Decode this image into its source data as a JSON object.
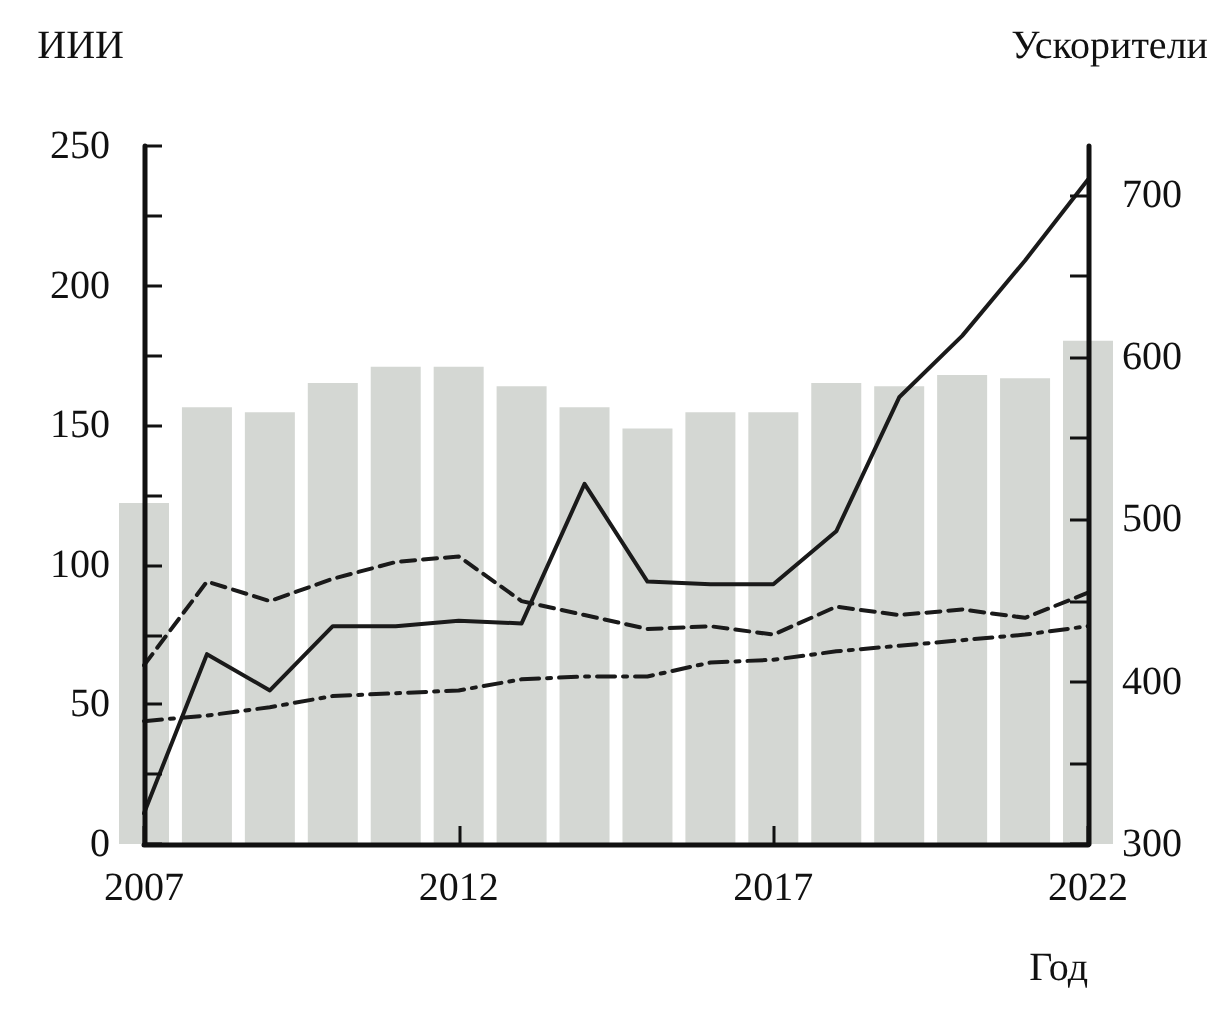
{
  "chart_data": {
    "type": "line",
    "xlabel": "Год",
    "ylabel": "ИИИ",
    "y2label": "Ускорители",
    "x": [
      2007,
      2008,
      2009,
      2010,
      2011,
      2012,
      2013,
      2014,
      2015,
      2016,
      2017,
      2018,
      2019,
      2020,
      2021,
      2022
    ],
    "series": [
      {
        "type": "bar",
        "axis": "y2",
        "color": "#d4d7d3",
        "values": [
          510,
          569,
          566,
          584,
          594,
          594,
          582,
          569,
          556,
          566,
          566,
          584,
          582,
          589,
          587,
          610
        ]
      },
      {
        "color": "#1a1a1a",
        "line_style": "solid",
        "values": [
          11,
          68,
          55,
          78,
          78,
          80,
          79,
          129,
          94,
          93,
          93,
          112,
          160,
          182,
          209,
          238
        ]
      },
      {
        "color": "#1a1a1a",
        "line_style": "dashed",
        "values": [
          64,
          94,
          87,
          95,
          101,
          103,
          87,
          82,
          77,
          78,
          75,
          85,
          82,
          84,
          81,
          90
        ]
      },
      {
        "color": "#1a1a1a",
        "line_style": "dashdot",
        "values": [
          44,
          46,
          49,
          53,
          54,
          55,
          59,
          60,
          60,
          65,
          66,
          69,
          71,
          73,
          75,
          78
        ]
      }
    ],
    "xlim": [
      2007,
      2022
    ],
    "xticks": [
      2007,
      2012,
      2017,
      2022
    ],
    "ylim": [
      0,
      250
    ],
    "yticks": [
      0,
      {
        "value": 25,
        "label": null
      },
      50,
      {
        "value": 75,
        "label": null
      },
      100,
      {
        "value": 125,
        "label": null
      },
      150,
      {
        "value": 175,
        "label": null
      },
      200,
      {
        "value": 225,
        "label": null
      },
      250
    ],
    "y2lim": [
      300,
      730
    ],
    "y2ticks": [
      300,
      {
        "value": 350,
        "label": null
      },
      400,
      {
        "value": 450,
        "label": null
      },
      500,
      {
        "value": 550,
        "label": null
      },
      600,
      {
        "value": 650,
        "label": null
      },
      700
    ],
    "grid": false,
    "marker": "none"
  }
}
